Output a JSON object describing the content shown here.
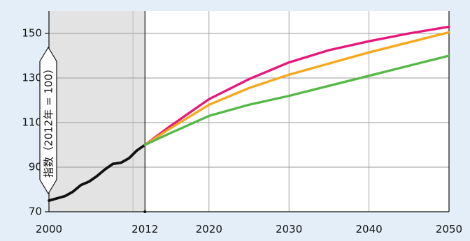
{
  "chart_data": {
    "type": "line",
    "ylabel": "指数（2012年 = 100）",
    "xlim": [
      2000,
      2050
    ],
    "ylim": [
      70,
      160
    ],
    "x_ticks": [
      2000,
      2012,
      2020,
      2030,
      2040,
      2050
    ],
    "y_ticks": [
      70,
      90,
      110,
      130,
      150
    ],
    "shaded_region": [
      2000,
      2012
    ],
    "grid": true,
    "series": [
      {
        "color": "#111111",
        "x": [
          2000,
          2001,
          2002,
          2003,
          2004,
          2005,
          2006,
          2007,
          2008,
          2009,
          2010,
          2011,
          2012
        ],
        "values": [
          75,
          76,
          77,
          79,
          82,
          83.5,
          86,
          89,
          91.5,
          92,
          94,
          97.5,
          100
        ]
      },
      {
        "color": "#e6187a",
        "x": [
          2012,
          2015,
          2020,
          2025,
          2030,
          2035,
          2040,
          2045,
          2050
        ],
        "values": [
          100,
          108,
          120.5,
          129.5,
          137,
          142.5,
          146.5,
          150,
          153
        ]
      },
      {
        "color": "#f7a81b",
        "x": [
          2012,
          2015,
          2020,
          2025,
          2030,
          2035,
          2040,
          2045,
          2050
        ],
        "values": [
          100,
          107,
          118,
          125.5,
          131.5,
          136.5,
          141.5,
          146,
          150.5
        ]
      },
      {
        "color": "#56b947",
        "x": [
          2012,
          2015,
          2020,
          2025,
          2030,
          2035,
          2040,
          2045,
          2050
        ],
        "values": [
          100,
          105,
          113,
          118,
          122,
          126.5,
          131,
          135.5,
          140
        ]
      }
    ]
  }
}
